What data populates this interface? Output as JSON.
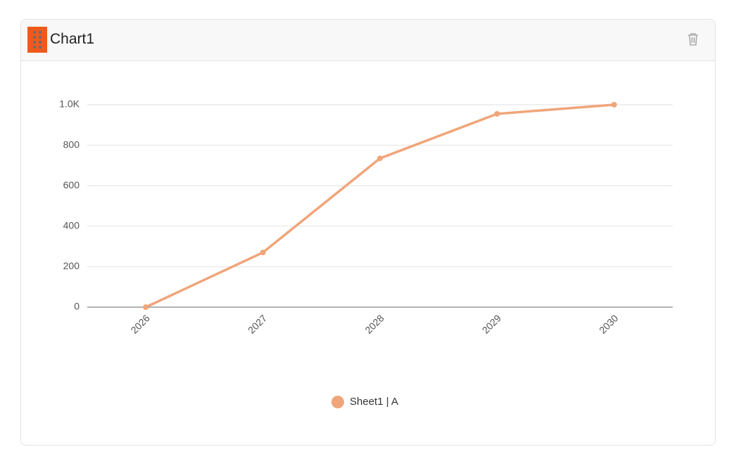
{
  "header": {
    "title": "Chart1"
  },
  "chart_data": {
    "type": "line",
    "categories": [
      "2026",
      "2027",
      "2028",
      "2029",
      "2030"
    ],
    "series": [
      {
        "name": "Sheet1 | A",
        "color": "#f0a57a",
        "values": [
          0,
          270,
          735,
          955,
          1000
        ]
      }
    ],
    "ylim": [
      0,
      1000
    ],
    "yticks": [
      0,
      200,
      400,
      600,
      800,
      {
        "value": 1000,
        "label": "1.0K"
      }
    ],
    "grid": true
  }
}
